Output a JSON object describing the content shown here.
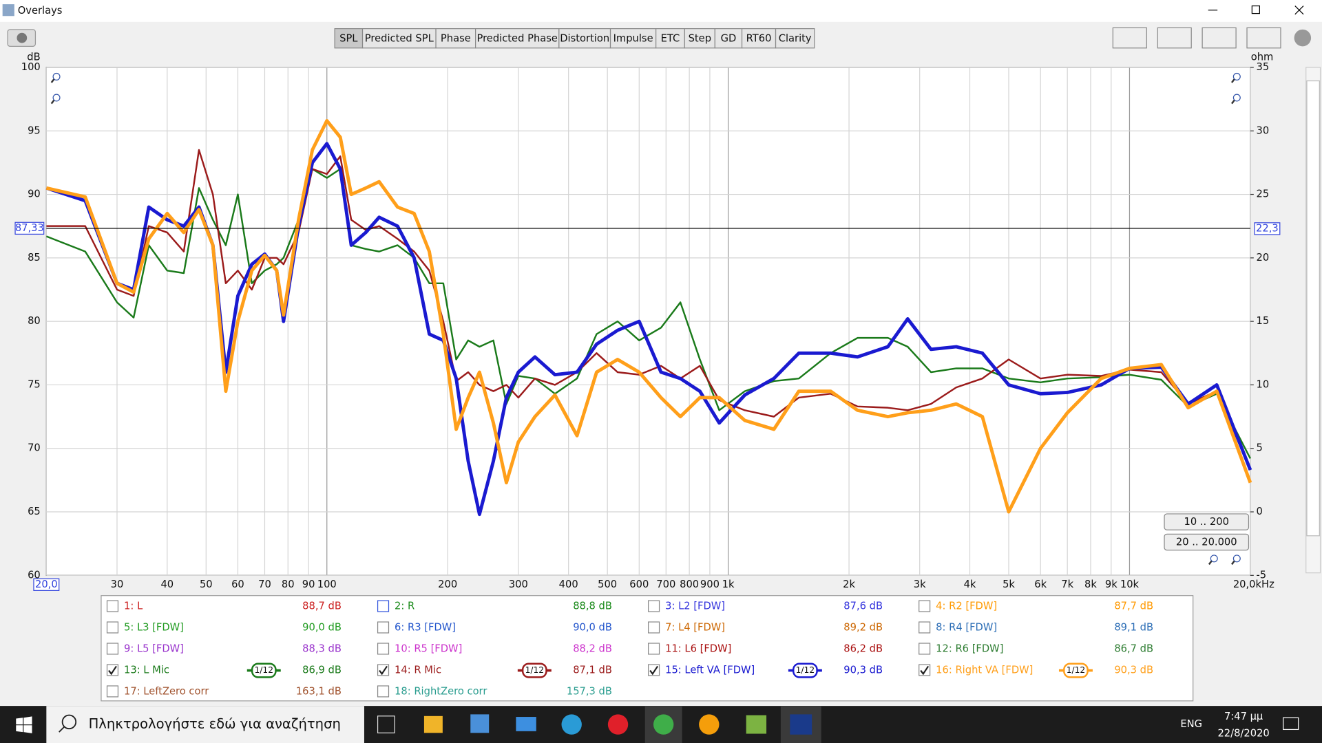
{
  "window": {
    "title": "Overlays",
    "tabs": [
      "SPL",
      "Predicted SPL",
      "Phase",
      "Predicted Phase",
      "Distortion",
      "Impulse",
      "ETC",
      "Step",
      "GD",
      "RT60",
      "Clarity"
    ],
    "zoom_buttons": [
      "10 .. 200",
      "20 .. 20.000"
    ]
  },
  "chart_data": {
    "type": "line",
    "y_label": "dB",
    "y2_label": "ohm",
    "log_x": true,
    "grid": true,
    "xlim": [
      20,
      20000
    ],
    "ylim": [
      60,
      100
    ],
    "y2lim": [
      -5,
      35
    ],
    "xticks": [
      {
        "value": 20,
        "label": "20,0"
      },
      30,
      40,
      50,
      60,
      70,
      80,
      90,
      100,
      200,
      300,
      400,
      500,
      600,
      700,
      800,
      900,
      {
        "value": 1000,
        "label": "1k"
      },
      {
        "value": 2000,
        "label": "2k"
      },
      {
        "value": 3000,
        "label": "3k"
      },
      {
        "value": 4000,
        "label": "4k"
      },
      {
        "value": 5000,
        "label": "5k"
      },
      {
        "value": 6000,
        "label": "6k"
      },
      {
        "value": 7000,
        "label": "7k"
      },
      {
        "value": 8000,
        "label": "8k"
      },
      {
        "value": 9000,
        "label": "9k"
      },
      {
        "value": 10000,
        "label": "10k"
      },
      {
        "value": 20000,
        "label": "20,0kHz"
      }
    ],
    "yticks": [
      60,
      65,
      70,
      75,
      80,
      85,
      90,
      95,
      100
    ],
    "y2ticks": [
      -5,
      0,
      5,
      10,
      15,
      20,
      25,
      30,
      35
    ],
    "cursor": {
      "value": 87.33,
      "label": "87,33"
    },
    "cursor_y2": {
      "value": 22.3,
      "label": "22,3"
    },
    "x": [
      20,
      25,
      30,
      33,
      36,
      40,
      44,
      48,
      52,
      56,
      60,
      65,
      70,
      75,
      78,
      85,
      92,
      100,
      108,
      115,
      125,
      135,
      150,
      165,
      180,
      195,
      210,
      225,
      240,
      260,
      280,
      300,
      330,
      370,
      420,
      470,
      530,
      600,
      680,
      760,
      850,
      950,
      1100,
      1300,
      1500,
      1800,
      2100,
      2500,
      2800,
      3200,
      3700,
      4300,
      5000,
      6000,
      7000,
      8500,
      10000,
      12000,
      14000,
      16500,
      20000
    ],
    "series": [
      {
        "name": "1: L",
        "level": "88,7 dB",
        "color": "#cc2222",
        "checked": false
      },
      {
        "name": "2: R",
        "level": "88,8 dB",
        "color": "#1a8a1a",
        "checked": false
      },
      {
        "name": "3: L2 [FDW]",
        "level": "87,6 dB",
        "color": "#3333dd",
        "checked": false
      },
      {
        "name": "4: R2 [FDW]",
        "level": "87,7 dB",
        "color": "#ff9900",
        "checked": false
      },
      {
        "name": "5: L3 [FDW]",
        "level": "90,0 dB",
        "color": "#1f9a1f",
        "checked": false
      },
      {
        "name": "6: R3 [FDW]",
        "level": "90,0 dB",
        "color": "#2255cc",
        "checked": false
      },
      {
        "name": "7: L4 [FDW]",
        "level": "89,2 dB",
        "color": "#cc6600",
        "checked": false
      },
      {
        "name": "8: R4 [FDW]",
        "level": "89,1 dB",
        "color": "#2a6cb5",
        "checked": false
      },
      {
        "name": "9: L5 [FDW]",
        "level": "88,3 dB",
        "color": "#9933cc",
        "checked": false
      },
      {
        "name": "10: R5 [FDW]",
        "level": "88,2 dB",
        "color": "#cc33cc",
        "checked": false
      },
      {
        "name": "11: L6 [FDW]",
        "level": "86,2 dB",
        "color": "#aa1111",
        "checked": false
      },
      {
        "name": "12: R6 [FDW]",
        "level": "86,7 dB",
        "color": "#2e7d32",
        "checked": false
      },
      {
        "name": "13: L Mic",
        "level": "86,9 dB",
        "color": "#1a7a1a",
        "checked": true,
        "smoothing": "1/12",
        "values": [
          86.7,
          85.5,
          81.5,
          80.3,
          86,
          84,
          83.8,
          90.5,
          88,
          86,
          90,
          83,
          84,
          84.5,
          85,
          88,
          92,
          91.3,
          92,
          86,
          85.7,
          85.5,
          86,
          85,
          83,
          83,
          77,
          78.5,
          78,
          78.5,
          73.5,
          75.7,
          75.5,
          74.3,
          75.5,
          79,
          80,
          78.5,
          79.5,
          81.5,
          77,
          73,
          74.5,
          75.3,
          75.5,
          77.5,
          78.7,
          78.7,
          78,
          76,
          76.3,
          76.3,
          75.5,
          75.2,
          75.5,
          75.6,
          75.8,
          75.4,
          73.3,
          74.3,
          69.2
        ]
      },
      {
        "name": "14: R Mic",
        "level": "87,1 dB",
        "color": "#9b1b1b",
        "checked": true,
        "smoothing": "1/12",
        "values": [
          87.5,
          87.5,
          82.5,
          82,
          87.5,
          87,
          85.5,
          93.5,
          90,
          83,
          84,
          82.5,
          85,
          85,
          84.5,
          87,
          92,
          91.6,
          93,
          88,
          87.2,
          87.5,
          86.5,
          85.5,
          84,
          80,
          75.3,
          76,
          75,
          74.5,
          75,
          74,
          75.5,
          75,
          76,
          77.5,
          76,
          75.8,
          76.5,
          75.5,
          76.5,
          73.8,
          73,
          72.5,
          74,
          74.3,
          73.3,
          73.2,
          73,
          73.5,
          74.8,
          75.5,
          77,
          75.5,
          75.8,
          75.7,
          76.2,
          76,
          73.5,
          74.5,
          68.3
        ]
      },
      {
        "name": "15: Left VA [FDW]",
        "level": "90,3 dB",
        "color": "#1a1ad0",
        "checked": true,
        "smoothing": "1/12",
        "values": [
          90.5,
          89.5,
          83,
          82.5,
          89,
          88,
          87.5,
          89,
          86,
          76,
          82,
          84.5,
          85.3,
          84,
          80,
          87.5,
          92.5,
          94,
          92,
          86,
          87,
          88.2,
          87.5,
          85,
          79,
          78.5,
          75.5,
          69,
          64.8,
          69,
          74,
          76,
          77.2,
          75.8,
          76,
          78.2,
          79.3,
          80,
          76,
          75.5,
          74.5,
          72,
          74.2,
          75.5,
          77.5,
          77.5,
          77.2,
          78,
          80.2,
          77.8,
          78,
          77.5,
          75,
          74.3,
          74.4,
          75,
          76.3,
          76.4,
          73.5,
          75,
          68.3
        ]
      },
      {
        "name": "16: Right VA [FDW]",
        "level": "90,3 dB",
        "color": "#ff9f1a",
        "checked": true,
        "smoothing": "1/12",
        "values": [
          90.5,
          89.8,
          83,
          82.3,
          86.5,
          88.5,
          87,
          88.8,
          86,
          74.5,
          80,
          84,
          85.2,
          84,
          80.5,
          88,
          93.5,
          95.8,
          94.5,
          90,
          90.5,
          91,
          89,
          88.5,
          85.5,
          79,
          71.5,
          74,
          76,
          72,
          67.3,
          70.5,
          72.5,
          74.2,
          71,
          76,
          77,
          76,
          74,
          72.5,
          74,
          74,
          72.2,
          71.5,
          74.5,
          74.5,
          73,
          72.5,
          72.8,
          73,
          73.5,
          72.5,
          65,
          70,
          72.8,
          75.5,
          76.3,
          76.6,
          73.2,
          74.5,
          67.3
        ]
      },
      {
        "name": "17: LeftZero corr",
        "level": "163,1 dB",
        "color": "#a0522d",
        "checked": false
      },
      {
        "name": "18: RightZero corr",
        "level": "157,3 dB",
        "color": "#2a9d8f",
        "checked": false
      }
    ]
  },
  "taskbar": {
    "search": "Πληκτρολογήστε εδώ για αναζήτηση",
    "language": "ENG",
    "time": "7:47 μμ",
    "date": "22/8/2020"
  }
}
